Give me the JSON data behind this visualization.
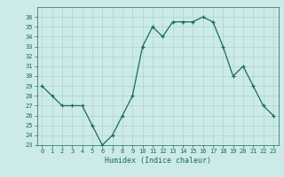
{
  "x": [
    0,
    1,
    2,
    3,
    4,
    5,
    6,
    7,
    8,
    9,
    10,
    11,
    12,
    13,
    14,
    15,
    16,
    17,
    18,
    19,
    20,
    21,
    22,
    23
  ],
  "y": [
    29,
    28,
    27,
    27,
    27,
    25,
    23,
    24,
    26,
    28,
    33,
    35,
    34,
    35.5,
    35.5,
    35.5,
    36,
    35.5,
    33,
    30,
    31,
    29,
    27,
    26
  ],
  "xlabel": "Humidex (Indice chaleur)",
  "ylim": [
    23,
    37
  ],
  "xlim": [
    -0.5,
    23.5
  ],
  "yticks": [
    23,
    24,
    25,
    26,
    27,
    28,
    29,
    30,
    31,
    32,
    33,
    34,
    35,
    36
  ],
  "xticks": [
    0,
    1,
    2,
    3,
    4,
    5,
    6,
    7,
    8,
    9,
    10,
    11,
    12,
    13,
    14,
    15,
    16,
    17,
    18,
    19,
    20,
    21,
    22,
    23
  ],
  "line_color": "#1a6b5a",
  "bg_color": "#cceae8",
  "grid_color": "#aad4d0",
  "tick_label_color": "#1a6b5a",
  "xlabel_color": "#1a6b5a"
}
